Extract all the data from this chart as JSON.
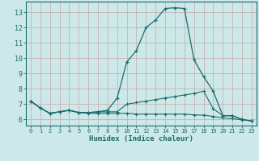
{
  "xlabel": "Humidex (Indice chaleur)",
  "xlim": [
    -0.5,
    23.5
  ],
  "ylim": [
    5.6,
    13.7
  ],
  "yticks": [
    6,
    7,
    8,
    9,
    10,
    11,
    12,
    13
  ],
  "xticks": [
    0,
    1,
    2,
    3,
    4,
    5,
    6,
    7,
    8,
    9,
    10,
    11,
    12,
    13,
    14,
    15,
    16,
    17,
    18,
    19,
    20,
    21,
    22,
    23
  ],
  "bg_color": "#cce8e8",
  "grid_color": "#b0d0d0",
  "line_color": "#1a6b6b",
  "line1_x": [
    0,
    1,
    2,
    3,
    4,
    5,
    6,
    7,
    8,
    9,
    10,
    11,
    12,
    13,
    14,
    15,
    16,
    17,
    18,
    19,
    20,
    21,
    22,
    23
  ],
  "line1_y": [
    7.2,
    6.75,
    6.4,
    6.5,
    6.6,
    6.45,
    6.45,
    6.5,
    6.6,
    7.4,
    9.75,
    10.5,
    12.0,
    12.5,
    13.25,
    13.3,
    13.25,
    9.9,
    8.8,
    7.85,
    6.25,
    6.25,
    6.0,
    5.9
  ],
  "line2_x": [
    0,
    1,
    2,
    3,
    4,
    5,
    6,
    7,
    8,
    9,
    10,
    11,
    12,
    13,
    14,
    15,
    16,
    17,
    18,
    19,
    20,
    21,
    22,
    23
  ],
  "line2_y": [
    7.2,
    6.75,
    6.4,
    6.5,
    6.6,
    6.45,
    6.45,
    6.5,
    6.5,
    6.5,
    7.0,
    7.1,
    7.2,
    7.3,
    7.4,
    7.5,
    7.6,
    7.7,
    7.85,
    6.7,
    6.25,
    6.25,
    6.0,
    5.9
  ],
  "line3_x": [
    0,
    1,
    2,
    3,
    4,
    5,
    6,
    7,
    8,
    9,
    10,
    11,
    12,
    13,
    14,
    15,
    16,
    17,
    18,
    19,
    20,
    21,
    22,
    23
  ],
  "line3_y": [
    7.2,
    6.75,
    6.4,
    6.5,
    6.6,
    6.45,
    6.4,
    6.4,
    6.4,
    6.4,
    6.4,
    6.35,
    6.35,
    6.35,
    6.35,
    6.35,
    6.35,
    6.3,
    6.28,
    6.2,
    6.1,
    6.05,
    5.98,
    5.9
  ]
}
